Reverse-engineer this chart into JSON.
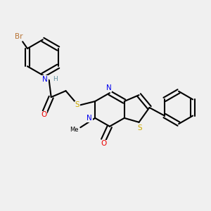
{
  "bg": "#f0f0f0",
  "bc": "#000000",
  "Br_color": "#b87333",
  "N_color": "#0000ee",
  "O_color": "#ee0000",
  "S_color": "#ccaa00",
  "H_color": "#5f8fa0",
  "lw": 1.5,
  "fs": 7.5,
  "xlim": [
    0,
    10
  ],
  "ylim": [
    0,
    10
  ]
}
